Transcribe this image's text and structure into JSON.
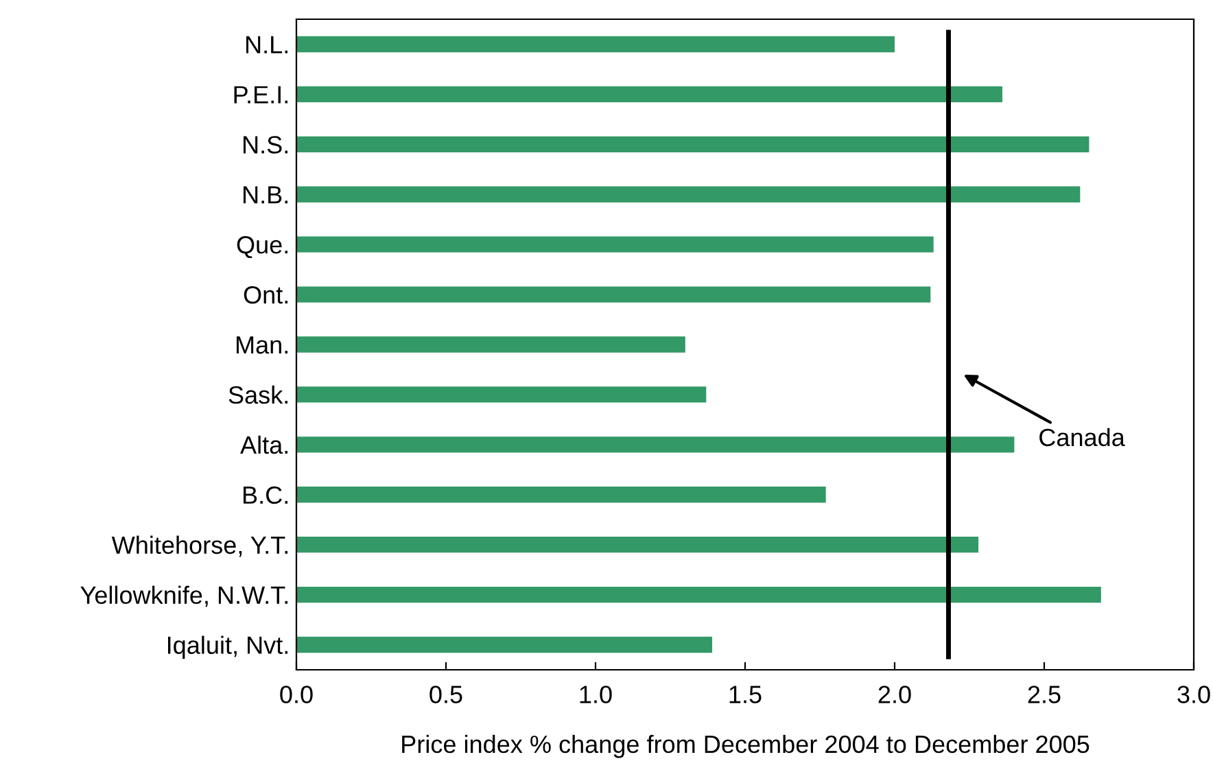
{
  "chart_data": {
    "type": "bar",
    "orientation": "horizontal",
    "xlabel": "Price index % change from December 2004 to December 2005",
    "categories": [
      "N.L.",
      "P.E.I.",
      "N.S.",
      "N.B.",
      "Que.",
      "Ont.",
      "Man.",
      "Sask.",
      "Alta.",
      "B.C.",
      "Whitehorse, Y.T.",
      "Yellowknife, N.W.T.",
      "Iqaluit, Nvt."
    ],
    "values": [
      2.0,
      2.36,
      2.65,
      2.62,
      2.13,
      2.12,
      1.3,
      1.37,
      2.4,
      1.77,
      2.28,
      2.69,
      1.39
    ],
    "color": "#339966",
    "xlim": [
      0,
      3
    ],
    "xticks": [
      {
        "value": 0,
        "label": "0.0"
      },
      {
        "value": 0.5,
        "label": "0.5"
      },
      {
        "value": 1,
        "label": "1.0"
      },
      {
        "value": 1.5,
        "label": "1.5"
      },
      {
        "value": 2,
        "label": "2.0"
      },
      {
        "value": 2.5,
        "label": "2.5"
      },
      {
        "value": 3,
        "label": "3.0"
      }
    ],
    "ref_lines": [
      {
        "axis": "x",
        "value": 2.18,
        "label": "Canada",
        "color": "#000000"
      }
    ],
    "grid": false,
    "legend": false
  }
}
